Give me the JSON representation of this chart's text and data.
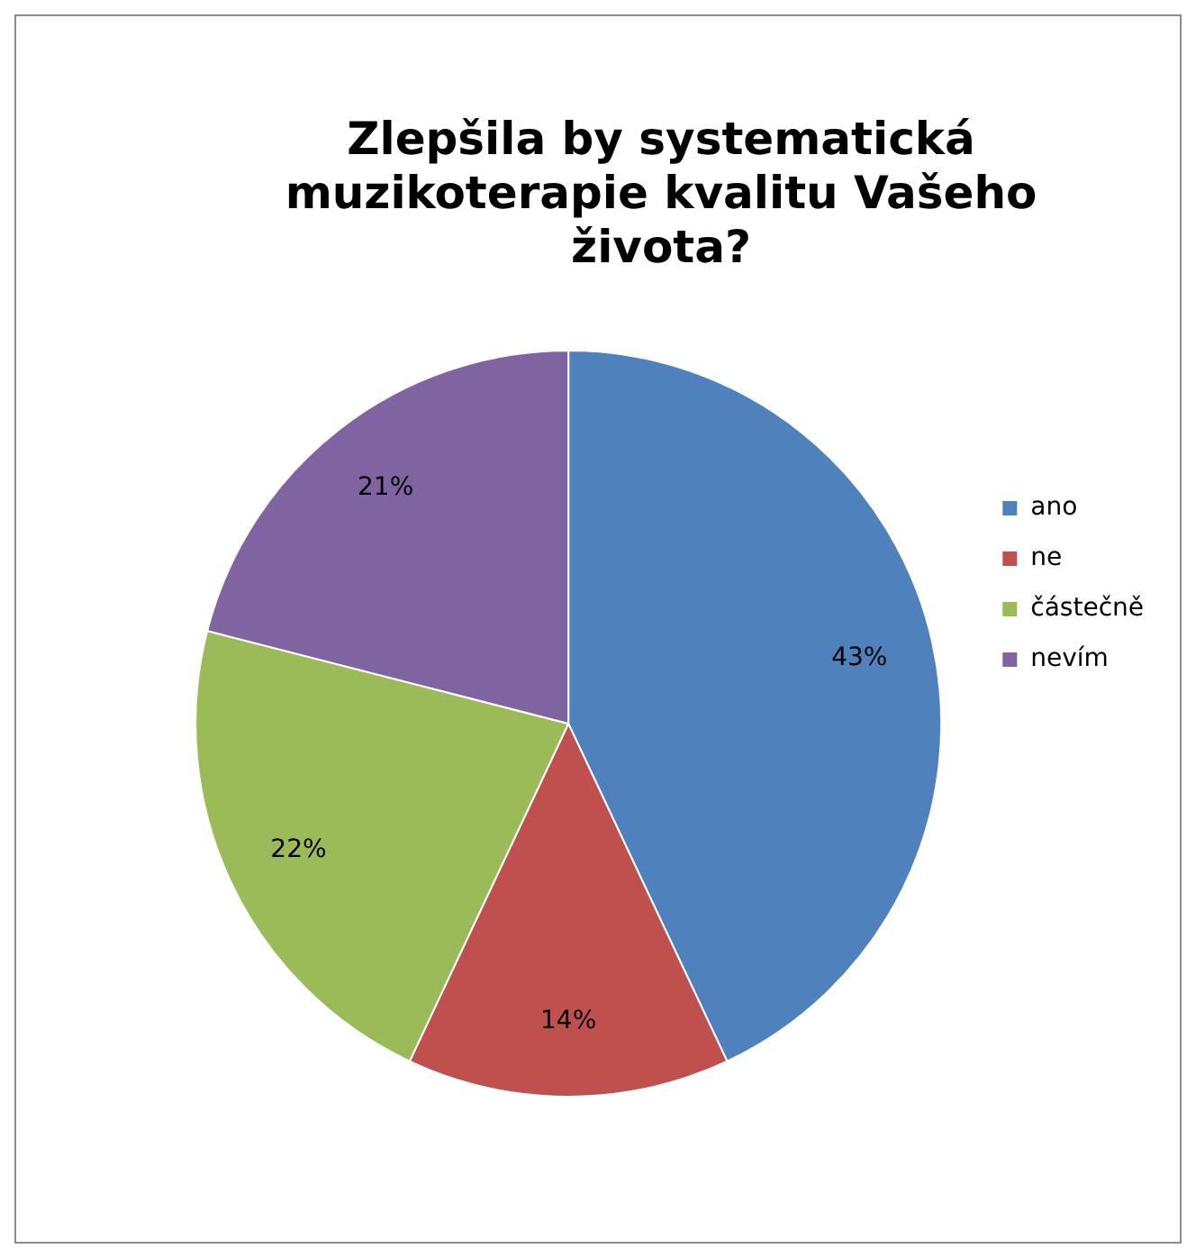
{
  "chart_data": {
    "type": "pie",
    "title": "Zlepšila by systematická muzikoterapie kvalitu Vašeho života?",
    "categories": [
      "ano",
      "ne",
      "částečně",
      "nevím"
    ],
    "values": [
      43,
      14,
      22,
      21
    ],
    "colors": [
      "#4f81bd",
      "#c0504d",
      "#9bbb59",
      "#8064a2"
    ],
    "value_labels": [
      "43%",
      "14%",
      "22%",
      "21%"
    ],
    "legend": "right"
  }
}
